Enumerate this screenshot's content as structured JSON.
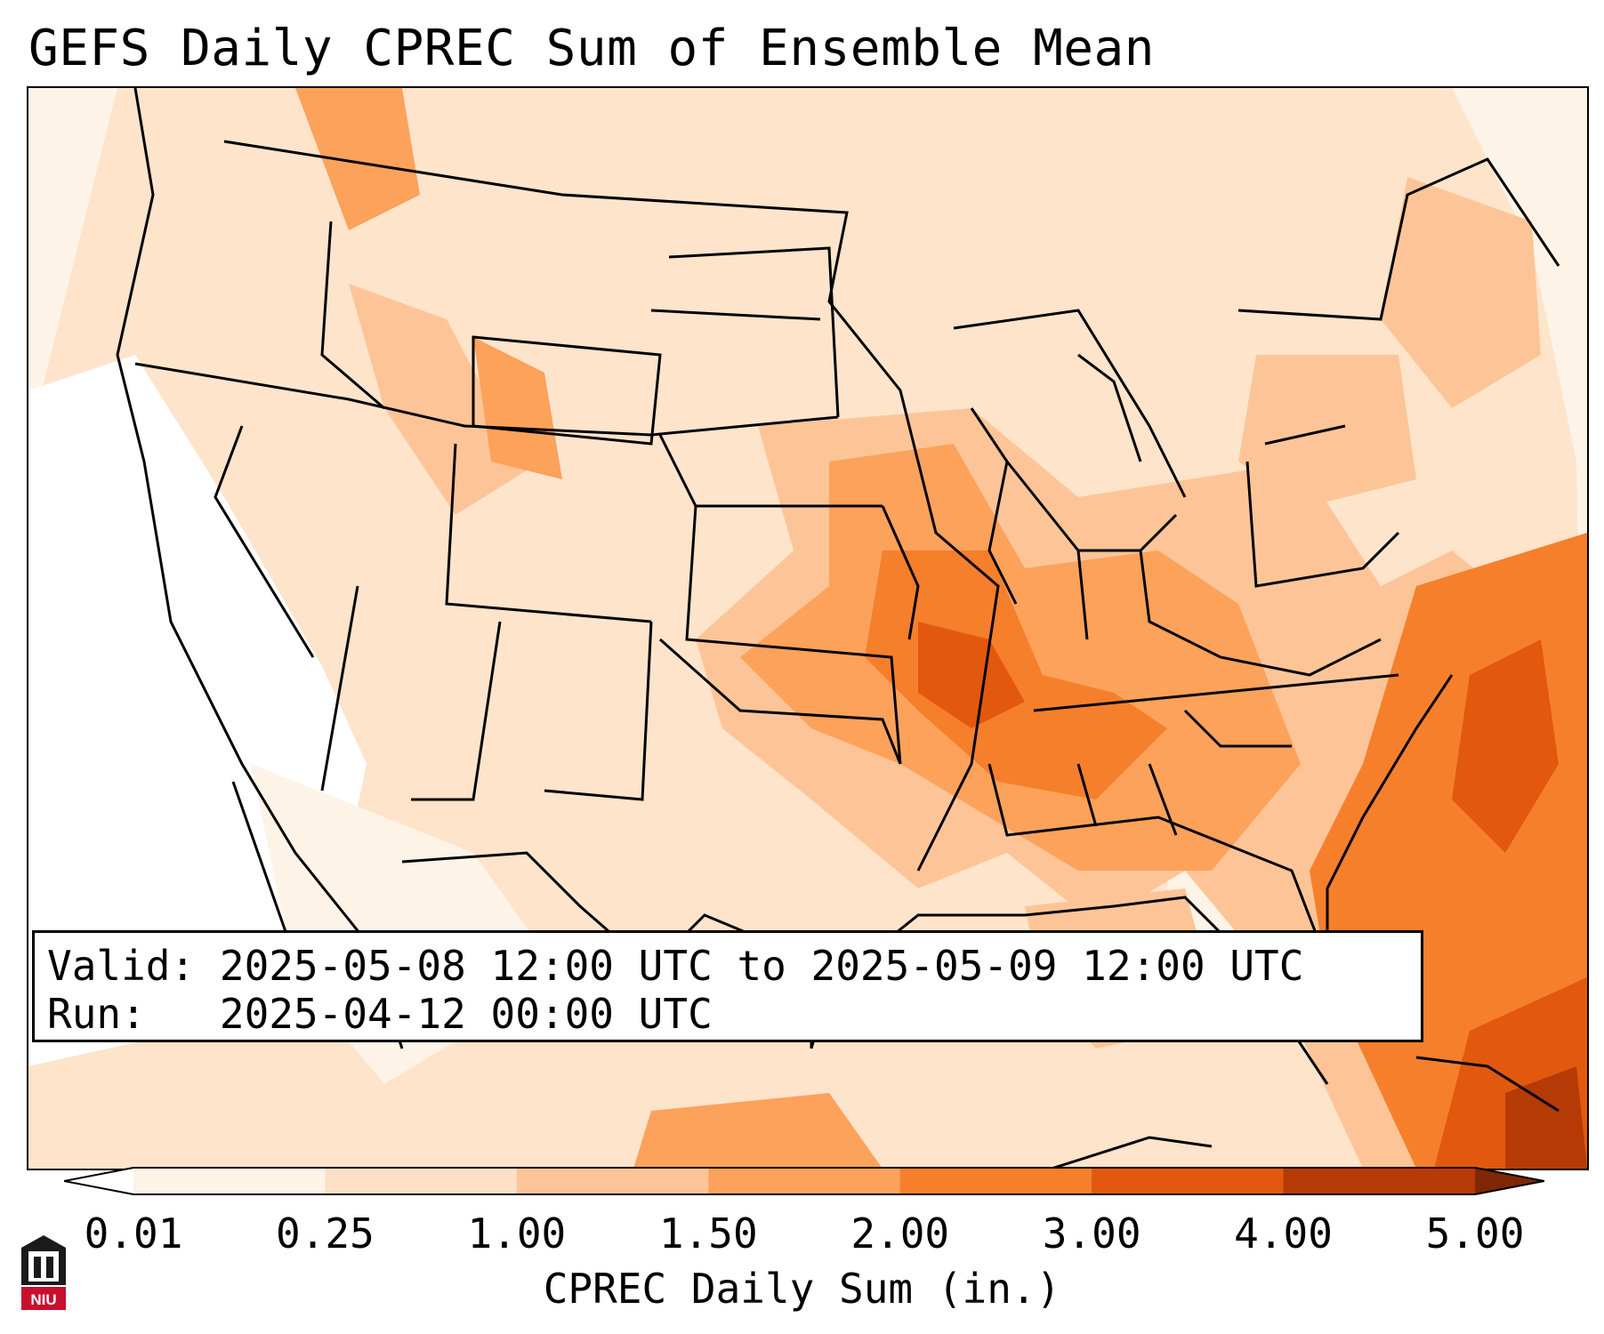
{
  "title": "GEFS Daily CPREC Sum of Ensemble Mean",
  "info": {
    "valid_label": "Valid:",
    "valid_value": "2025-05-08 12:00 UTC to 2025-05-09 12:00 UTC",
    "run_label": "Run:",
    "run_value": "2025-04-12 00:00 UTC"
  },
  "colorbar": {
    "label": "CPREC Daily Sum (in.)",
    "ticks": [
      "0.01",
      "0.25",
      "1.00",
      "1.50",
      "2.00",
      "3.00",
      "4.00",
      "5.00"
    ],
    "colors": [
      "#fef3e7",
      "#fde0c5",
      "#fdc597",
      "#fda25b",
      "#f67f2c",
      "#e2580f",
      "#b53a05"
    ],
    "under_color": "#ffffff",
    "over_color": "#7f2704"
  },
  "logo": {
    "text": "NIU"
  }
}
